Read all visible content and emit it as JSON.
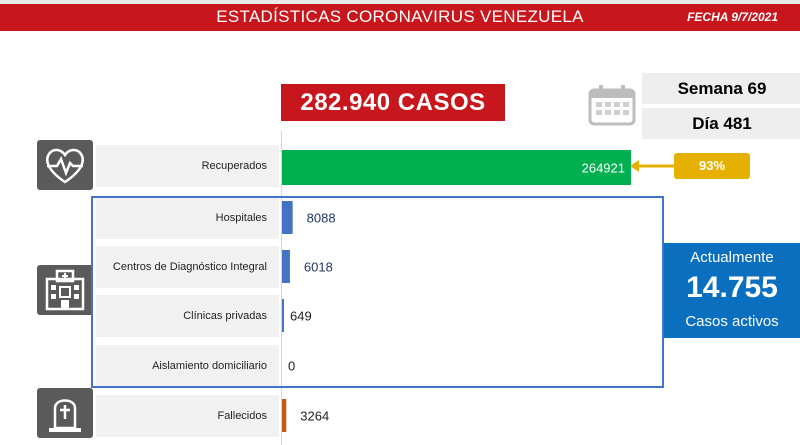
{
  "header": {
    "title": "ESTADÍSTICAS CORONAVIRUS VENEZUELA",
    "date": "FECHA 9/7/2021"
  },
  "summary": {
    "total_cases": "282.940 CASOS",
    "week": "Semana 69",
    "day": "Día 481",
    "recovered_pct": "93%"
  },
  "active": {
    "pre": "Actualmente",
    "value": "14.755",
    "post": "Casos activos"
  },
  "icons": {
    "calendar": "calendar-icon",
    "recovered": "heart-pulse-icon",
    "hospital": "hospital-icon",
    "deceased": "tombstone-icon"
  },
  "chart_data": {
    "type": "bar",
    "orientation": "horizontal",
    "categories": [
      "Recuperados",
      "Hospitales",
      "Centros de Diagnóstico Integral",
      "Clínicas privadas",
      "Aislamiento domiciliario",
      "Fallecidos"
    ],
    "values": [
      264921,
      8088,
      6018,
      649,
      0,
      3264
    ],
    "value_labels": [
      "264921",
      "8088",
      "6018",
      "649",
      "0",
      "3264"
    ],
    "colors": [
      "#00b050",
      "#4472c4",
      "#4472c4",
      "#4472c4",
      "#4472c4",
      "#c55a11"
    ],
    "label_colors": [
      "#ffffff",
      "#1f3864",
      "#1f3864",
      "#222222",
      "#222222",
      "#222222"
    ],
    "xlim": [
      0,
      300000
    ],
    "grid": false,
    "legend": "none"
  }
}
